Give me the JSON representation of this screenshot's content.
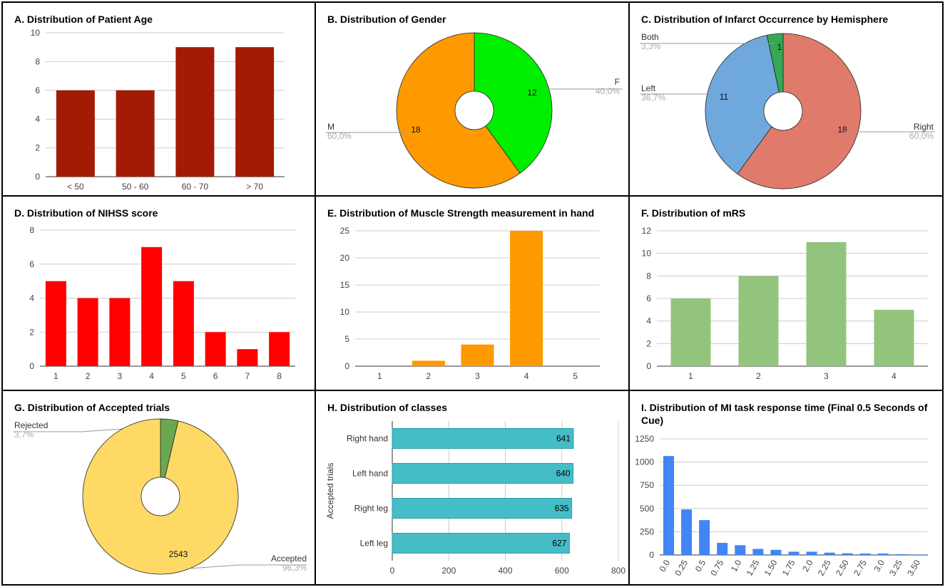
{
  "chart_data": [
    {
      "id": "A",
      "type": "bar",
      "title": "A. Distribution of Patient Age",
      "categories": [
        "< 50",
        "50 - 60",
        "60 - 70",
        "> 70"
      ],
      "values": [
        6,
        6,
        9,
        9
      ],
      "ylim": [
        0,
        10
      ],
      "yticks": [
        0,
        2,
        4,
        6,
        8,
        10
      ],
      "color": "#a31b04",
      "xlabel": "",
      "ylabel": ""
    },
    {
      "id": "B",
      "type": "pie",
      "title": "B. Distribution of Gender",
      "slices": [
        {
          "label": "F",
          "value": 12,
          "pct": "40,0%",
          "color": "#00ee00"
        },
        {
          "label": "M",
          "value": 18,
          "pct": "60,0%",
          "color": "#ff9900"
        }
      ]
    },
    {
      "id": "C",
      "type": "pie",
      "title": "C. Distribution of Infarct Occurrence by Hemisphere",
      "slices": [
        {
          "label": "Right",
          "value": 18,
          "pct": "60,0%",
          "color": "#e07b6b"
        },
        {
          "label": "Left",
          "value": 11,
          "pct": "36,7%",
          "color": "#6fa8dc"
        },
        {
          "label": "Both",
          "value": 1,
          "pct": "3,3%",
          "color": "#34a853"
        }
      ]
    },
    {
      "id": "D",
      "type": "bar",
      "title": "D. Distribution of NIHSS score",
      "categories": [
        "1",
        "2",
        "3",
        "4",
        "5",
        "6",
        "7",
        "8"
      ],
      "values": [
        5,
        4,
        4,
        7,
        5,
        2,
        1,
        2
      ],
      "ylim": [
        0,
        8
      ],
      "yticks": [
        0,
        2,
        4,
        6,
        8
      ],
      "color": "#ff0000",
      "xlabel": "",
      "ylabel": ""
    },
    {
      "id": "E",
      "type": "bar",
      "title": "E. Distribution of Muscle Strength measurement in hand",
      "categories": [
        "1",
        "2",
        "3",
        "4",
        "5"
      ],
      "values": [
        0,
        1,
        4,
        25,
        0
      ],
      "ylim": [
        0,
        25
      ],
      "yticks": [
        0,
        5,
        10,
        15,
        20,
        25
      ],
      "color": "#ff9900",
      "xlabel": "",
      "ylabel": ""
    },
    {
      "id": "F",
      "type": "bar",
      "title": "F. Distribution of mRS",
      "categories": [
        "1",
        "2",
        "3",
        "4"
      ],
      "values": [
        6,
        8,
        11,
        5
      ],
      "ylim": [
        0,
        12
      ],
      "yticks": [
        0,
        2,
        4,
        6,
        8,
        10,
        12
      ],
      "color": "#93c47d",
      "xlabel": "",
      "ylabel": ""
    },
    {
      "id": "G",
      "type": "pie",
      "title": "G. Distribution of Accepted trials",
      "slices": [
        {
          "label": "Rejected",
          "value": 97,
          "pct": "3,7%",
          "color": "#6aa84f"
        },
        {
          "label": "Accepted",
          "value": 2543,
          "pct": "96,3%",
          "color": "#ffd966"
        }
      ]
    },
    {
      "id": "H",
      "type": "hbar",
      "title": "H. Distribution of classes",
      "categories": [
        "Right hand",
        "Left hand",
        "Right leg",
        "Left leg"
      ],
      "values": [
        641,
        640,
        635,
        627
      ],
      "xlim": [
        0,
        800
      ],
      "xticks": [
        0,
        200,
        400,
        600,
        800
      ],
      "ylabel": "Accepted trials",
      "color": "#45bdc6"
    },
    {
      "id": "I",
      "type": "bar",
      "title": "I. Distribution of MI task response time (Final 0.5 Seconds of Cue)",
      "categories": [
        "0.0",
        "0.25",
        "0.5",
        "0.75",
        "1.0",
        "1.25",
        "1.50",
        "1.75",
        "2.0",
        "2.25",
        "2.50",
        "2.75",
        "3.0",
        "3.25",
        "3.50"
      ],
      "values": [
        1065,
        490,
        375,
        130,
        105,
        65,
        55,
        35,
        35,
        25,
        18,
        15,
        15,
        8,
        5
      ],
      "ylim": [
        0,
        1250
      ],
      "yticks": [
        0,
        250,
        500,
        750,
        1000,
        1250
      ],
      "color": "#4285f4",
      "xlabel": "",
      "ylabel": ""
    }
  ]
}
